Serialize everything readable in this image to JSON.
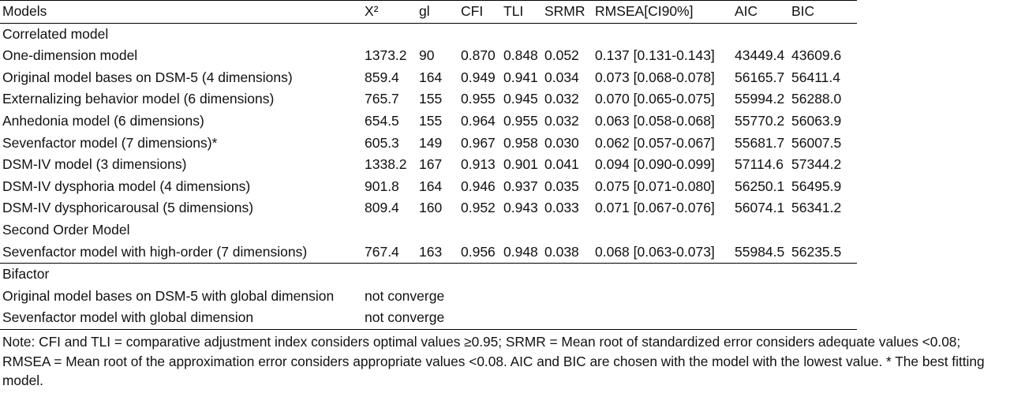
{
  "columns": [
    "Models",
    "X²",
    "gl",
    "CFI",
    "TLI",
    "SRMR",
    "RMSEA[CI90%]",
    "AIC",
    "BIC"
  ],
  "groups": [
    {
      "label": "Correlated model",
      "rows": [
        {
          "model": "One-dimension model",
          "x2": "1373.2",
          "gl": "90",
          "cfi": "0.870",
          "tli": "0.848",
          "srmr": "0.052",
          "rmsea": "0.137 [0.131-0.143]",
          "aic": "43449.4",
          "bic": "43609.6"
        },
        {
          "model": "Original model bases on DSM-5 (4 dimensions)",
          "x2": "859.4",
          "gl": "164",
          "cfi": "0.949",
          "tli": "0.941",
          "srmr": "0.034",
          "rmsea": "0.073 [0.068-0.078]",
          "aic": "56165.7",
          "bic": "56411.4"
        },
        {
          "model": "Externalizing behavior model (6 dimensions)",
          "x2": "765.7",
          "gl": "155",
          "cfi": "0.955",
          "tli": "0.945",
          "srmr": "0.032",
          "rmsea": "0.070 [0.065-0.075]",
          "aic": "55994.2",
          "bic": "56288.0"
        },
        {
          "model": "Anhedonia model (6 dimensions)",
          "x2": "654.5",
          "gl": "155",
          "cfi": "0.964",
          "tli": "0.955",
          "srmr": "0.032",
          "rmsea": "0.063 [0.058-0.068]",
          "aic": "55770.2",
          "bic": "56063.9"
        },
        {
          "model": "Sevenfactor model (7 dimensions)*",
          "x2": "605.3",
          "gl": "149",
          "cfi": "0.967",
          "tli": "0.958",
          "srmr": "0.030",
          "rmsea": "0.062 [0.057-0.067]",
          "aic": "55681.7",
          "bic": "56007.5"
        },
        {
          "model": "DSM-IV model (3 dimensions)",
          "x2": "1338.2",
          "gl": "167",
          "cfi": "0.913",
          "tli": "0.901",
          "srmr": "0.041",
          "rmsea": "0.094 [0.090-0.099]",
          "aic": "57114.6",
          "bic": "57344.2"
        },
        {
          "model": "DSM-IV dysphoria model (4 dimensions)",
          "x2": "901.8",
          "gl": "164",
          "cfi": "0.946",
          "tli": "0.937",
          "srmr": "0.035",
          "rmsea": "0.075 [0.071-0.080]",
          "aic": "56250.1",
          "bic": "56495.9"
        },
        {
          "model": "DSM-IV dysphoricarousal (5 dimensions)",
          "x2": "809.4",
          "gl": "160",
          "cfi": "0.952",
          "tli": "0.943",
          "srmr": "0.033",
          "rmsea": "0.071 [0.067-0.076]",
          "aic": "56074.1",
          "bic": "56341.2"
        }
      ]
    },
    {
      "label": "Second Order Model",
      "rows": [
        {
          "model": "Sevenfactor model with high-order (7 dimensions)",
          "x2": "767.4",
          "gl": "163",
          "cfi": "0.956",
          "tli": "0.948",
          "srmr": "0.038",
          "rmsea": "0.068 [0.063-0.073]",
          "aic": "55984.5",
          "bic": "56235.5"
        }
      ]
    },
    {
      "label": "Bifactor",
      "rows": [
        {
          "model": "Original model bases on DSM-5 with global dimension",
          "x2": "not converge",
          "gl": "",
          "cfi": "",
          "tli": "",
          "srmr": "",
          "rmsea": "",
          "aic": "",
          "bic": ""
        },
        {
          "model": "Sevenfactor model with global dimension",
          "x2": "not converge",
          "gl": "",
          "cfi": "",
          "tli": "",
          "srmr": "",
          "rmsea": "",
          "aic": "",
          "bic": ""
        }
      ]
    }
  ],
  "note": "Note: CFI and TLI = comparative adjustment index considers optimal values ≥0.95; SRMR = Mean root of standardized error considers adequate values <0.08; RMSEA = Mean root of the approximation error considers appropriate values <0.08. AIC and BIC are chosen with the model with the lowest value. * The best fitting model."
}
